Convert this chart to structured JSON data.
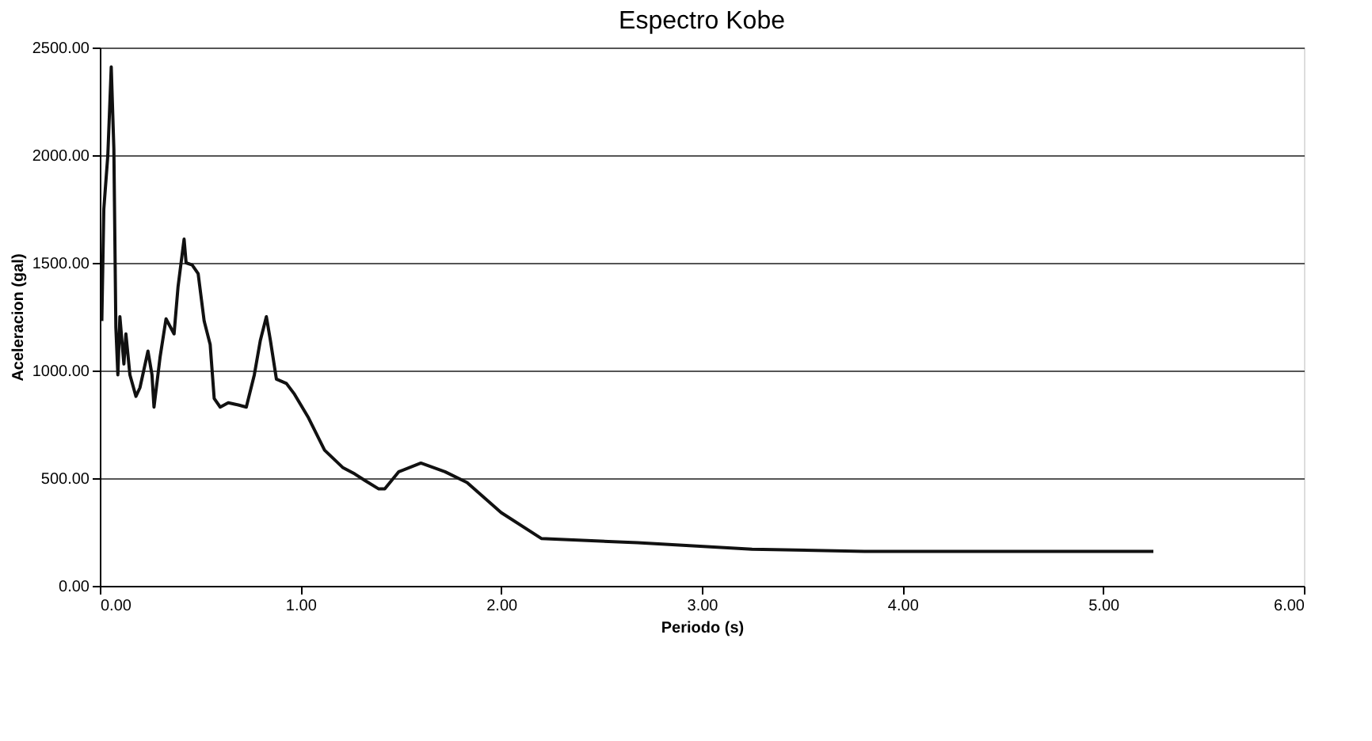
{
  "chart_data": {
    "type": "line",
    "title": "Espectro Kobe",
    "xlabel": "Periodo (s)",
    "ylabel": "Aceleracion (gal)",
    "xlim": [
      0,
      6
    ],
    "ylim": [
      0,
      2500
    ],
    "xticks": [
      {
        "value": 0,
        "label": "0.00"
      },
      {
        "value": 1,
        "label": "1.00"
      },
      {
        "value": 2,
        "label": "2.00"
      },
      {
        "value": 3,
        "label": "3.00"
      },
      {
        "value": 4,
        "label": "4.00"
      },
      {
        "value": 5,
        "label": "5.00"
      },
      {
        "value": 6,
        "label": "6.00"
      }
    ],
    "yticks": [
      {
        "value": 0,
        "label": "0.00"
      },
      {
        "value": 500,
        "label": "500.00"
      },
      {
        "value": 1000,
        "label": "1000.00"
      },
      {
        "value": 1500,
        "label": "1500.00"
      },
      {
        "value": 2000,
        "label": "2000.00"
      },
      {
        "value": 2500,
        "label": "2500.00"
      }
    ],
    "grid": "y",
    "marker": "none",
    "line_style": "solid",
    "series": [
      {
        "color": "#111111",
        "x": [
          0.01,
          0.02,
          0.04,
          0.057,
          0.07,
          0.08,
          0.09,
          0.1,
          0.12,
          0.13,
          0.15,
          0.18,
          0.2,
          0.24,
          0.26,
          0.27,
          0.3,
          0.33,
          0.37,
          0.39,
          0.42,
          0.43,
          0.46,
          0.49,
          0.52,
          0.55,
          0.57,
          0.6,
          0.64,
          0.69,
          0.73,
          0.77,
          0.8,
          0.83,
          0.85,
          0.88,
          0.93,
          0.97,
          1.04,
          1.12,
          1.21,
          1.27,
          1.32,
          1.39,
          1.42,
          1.49,
          1.6,
          1.72,
          1.83,
          2.0,
          2.2,
          2.68,
          3.25,
          3.81,
          5.25
        ],
        "values": [
          1230,
          1750,
          2000,
          2410,
          2030,
          1200,
          980,
          1250,
          1030,
          1170,
          980,
          880,
          920,
          1090,
          980,
          830,
          1060,
          1240,
          1170,
          1390,
          1610,
          1500,
          1490,
          1450,
          1230,
          1120,
          870,
          830,
          850,
          840,
          830,
          980,
          1140,
          1250,
          1140,
          960,
          940,
          890,
          780,
          630,
          550,
          520,
          490,
          450,
          450,
          530,
          570,
          530,
          480,
          340,
          220,
          200,
          170,
          160,
          160
        ]
      }
    ]
  }
}
